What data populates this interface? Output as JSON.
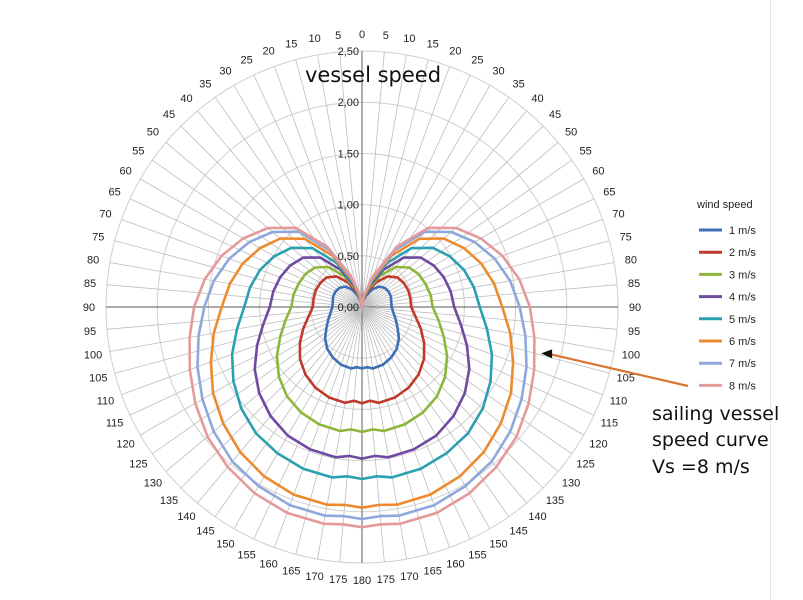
{
  "chart_data": {
    "type": "polar-line",
    "title": "vessel speed",
    "angle_unit": "degrees",
    "angle_ticks_right": [
      0,
      5,
      10,
      15,
      20,
      25,
      30,
      35,
      40,
      45,
      50,
      55,
      60,
      65,
      70,
      75,
      80,
      85,
      90,
      95,
      100,
      105,
      110,
      115,
      120,
      125,
      130,
      135,
      140,
      145,
      150,
      155,
      160,
      165,
      170,
      175,
      180
    ],
    "angle_ticks_left": [
      5,
      10,
      15,
      20,
      25,
      30,
      35,
      40,
      45,
      50,
      55,
      60,
      65,
      70,
      75,
      80,
      85,
      90,
      95,
      100,
      105,
      110,
      115,
      120,
      125,
      130,
      135,
      140,
      145,
      150,
      155,
      160,
      165,
      170,
      175
    ],
    "radial_ticks": [
      "0,00",
      "0,50",
      "1,00",
      "1,50",
      "2,00",
      "2,50"
    ],
    "rlim": [
      0,
      2.5
    ],
    "grid": true,
    "legend": {
      "title": "wind speed",
      "placement": "right"
    },
    "angles": [
      0,
      10,
      20,
      30,
      40,
      50,
      60,
      70,
      80,
      90,
      100,
      110,
      120,
      130,
      140,
      150,
      160,
      170,
      175,
      180
    ],
    "series": [
      {
        "name": "1 m/s",
        "color": "#3c6fb6",
        "values": [
          0,
          0.06,
          0.12,
          0.2,
          0.26,
          0.29,
          0.3,
          0.3,
          0.29,
          0.29,
          0.31,
          0.35,
          0.4,
          0.47,
          0.53,
          0.57,
          0.6,
          0.61,
          0.59,
          0.6
        ]
      },
      {
        "name": "2 m/s",
        "color": "#c0392b",
        "values": [
          0,
          0.07,
          0.16,
          0.28,
          0.39,
          0.45,
          0.47,
          0.48,
          0.48,
          0.48,
          0.53,
          0.61,
          0.7,
          0.79,
          0.86,
          0.91,
          0.94,
          0.95,
          0.92,
          0.94
        ]
      },
      {
        "name": "3 m/s",
        "color": "#8db63c",
        "values": [
          0,
          0.08,
          0.19,
          0.35,
          0.51,
          0.6,
          0.64,
          0.66,
          0.68,
          0.69,
          0.76,
          0.85,
          0.96,
          1.06,
          1.14,
          1.19,
          1.22,
          1.23,
          1.2,
          1.22
        ]
      },
      {
        "name": "4 m/s",
        "color": "#6f4aa0",
        "values": [
          0,
          0.09,
          0.22,
          0.42,
          0.63,
          0.75,
          0.81,
          0.85,
          0.88,
          0.9,
          0.98,
          1.09,
          1.21,
          1.31,
          1.39,
          1.45,
          1.48,
          1.49,
          1.46,
          1.48
        ]
      },
      {
        "name": "5 m/s",
        "color": "#2aa0b0",
        "values": [
          0,
          0.1,
          0.25,
          0.5,
          0.75,
          0.9,
          0.99,
          1.06,
          1.11,
          1.15,
          1.24,
          1.35,
          1.45,
          1.54,
          1.61,
          1.65,
          1.68,
          1.69,
          1.66,
          1.68
        ]
      },
      {
        "name": "6 m/s",
        "color": "#ee8a2e",
        "values": [
          0,
          0.11,
          0.28,
          0.58,
          0.87,
          1.04,
          1.15,
          1.24,
          1.31,
          1.37,
          1.47,
          1.57,
          1.68,
          1.77,
          1.85,
          1.91,
          1.95,
          1.96,
          1.94,
          1.96
        ]
      },
      {
        "name": "7 m/s",
        "color": "#8fa8dc",
        "values": [
          0,
          0.12,
          0.31,
          0.64,
          0.96,
          1.14,
          1.27,
          1.38,
          1.47,
          1.54,
          1.62,
          1.71,
          1.8,
          1.89,
          1.97,
          2.02,
          2.06,
          2.07,
          2.05,
          2.07
        ]
      },
      {
        "name": "8 m/s",
        "color": "#e49a9a",
        "values": [
          0,
          0.12,
          0.33,
          0.68,
          1.01,
          1.2,
          1.34,
          1.46,
          1.56,
          1.64,
          1.71,
          1.79,
          1.88,
          1.97,
          2.04,
          2.1,
          2.14,
          2.15,
          2.13,
          2.15
        ]
      }
    ],
    "annotation": {
      "lines": [
        "sailing vessel",
        "speed curve",
        "Vs =8 m/s"
      ],
      "arrow_color": "#d9752f",
      "target_series": "8 m/s",
      "target_angle": 105
    }
  }
}
